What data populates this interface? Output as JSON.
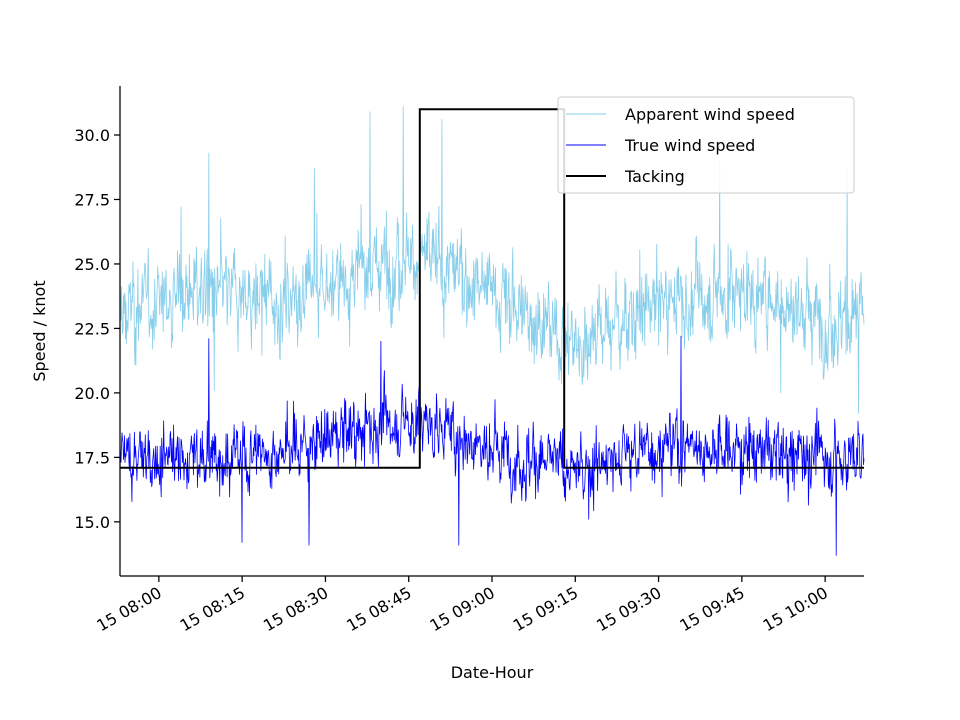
{
  "chart_data": {
    "type": "line",
    "xlabel": "Date-Hour",
    "ylabel": "Speed / knot",
    "x_range": [
      "2000-01-15T07:53",
      "2000-01-15T10:07"
    ],
    "x_ticks": [
      {
        "time": "2000-01-15T08:00",
        "label": "15 08:00"
      },
      {
        "time": "2000-01-15T08:15",
        "label": "15 08:15"
      },
      {
        "time": "2000-01-15T08:30",
        "label": "15 08:30"
      },
      {
        "time": "2000-01-15T08:45",
        "label": "15 08:45"
      },
      {
        "time": "2000-01-15T09:00",
        "label": "15 09:00"
      },
      {
        "time": "2000-01-15T09:15",
        "label": "15 09:15"
      },
      {
        "time": "2000-01-15T09:30",
        "label": "15 09:30"
      },
      {
        "time": "2000-01-15T09:45",
        "label": "15 09:45"
      },
      {
        "time": "2000-01-15T10:00",
        "label": "15 10:00"
      }
    ],
    "ylim": [
      12.9,
      31.9
    ],
    "y_ticks": [
      {
        "value": 15.0,
        "label": "15.0"
      },
      {
        "value": 17.5,
        "label": "17.5"
      },
      {
        "value": 20.0,
        "label": "20.0"
      },
      {
        "value": 22.5,
        "label": "22.5"
      },
      {
        "value": 25.0,
        "label": "25.0"
      },
      {
        "value": 27.5,
        "label": "27.5"
      },
      {
        "value": 30.0,
        "label": "30.0"
      }
    ],
    "legend_position": "top-right",
    "grid": false,
    "series": [
      {
        "name": "Apparent wind speed",
        "color": "#87ceeb",
        "style": "noisy",
        "time_start": "2000-01-15T07:53",
        "time_end": "2000-01-15T10:07",
        "approx_mean": 23.5,
        "approx_range": [
          19.0,
          31.0
        ],
        "anchors": [
          {
            "time": "2000-01-15T07:53",
            "value": 23.0
          },
          {
            "time": "2000-01-15T08:05",
            "value": 24.0
          },
          {
            "time": "2000-01-15T08:20",
            "value": 23.5
          },
          {
            "time": "2000-01-15T08:35",
            "value": 24.5
          },
          {
            "time": "2000-01-15T08:45",
            "value": 25.5
          },
          {
            "time": "2000-01-15T08:50",
            "value": 25.0
          },
          {
            "time": "2000-01-15T09:00",
            "value": 24.0
          },
          {
            "time": "2000-01-15T09:10",
            "value": 22.5
          },
          {
            "time": "2000-01-15T09:15",
            "value": 22.0
          },
          {
            "time": "2000-01-15T09:30",
            "value": 23.5
          },
          {
            "time": "2000-01-15T09:45",
            "value": 24.0
          },
          {
            "time": "2000-01-15T10:00",
            "value": 23.0
          },
          {
            "time": "2000-01-15T10:07",
            "value": 23.0
          }
        ],
        "peaks": [
          {
            "time": "2000-01-15T08:04",
            "value": 27.2
          },
          {
            "time": "2000-01-15T08:09",
            "value": 29.3
          },
          {
            "time": "2000-01-15T08:28",
            "value": 28.7
          },
          {
            "time": "2000-01-15T08:38",
            "value": 30.9
          },
          {
            "time": "2000-01-15T08:44",
            "value": 31.1
          },
          {
            "time": "2000-01-15T08:51",
            "value": 30.6
          },
          {
            "time": "2000-01-15T09:41",
            "value": 29.0
          },
          {
            "time": "2000-01-15T10:04",
            "value": 28.6
          }
        ],
        "troughs": [
          {
            "time": "2000-01-15T08:10",
            "value": 20.1
          },
          {
            "time": "2000-01-15T09:13",
            "value": 19.8
          },
          {
            "time": "2000-01-15T09:52",
            "value": 20.0
          },
          {
            "time": "2000-01-15T10:06",
            "value": 19.2
          }
        ]
      },
      {
        "name": "True wind speed",
        "color": "#0000ff",
        "style": "noisy",
        "time_start": "2000-01-15T07:53",
        "time_end": "2000-01-15T10:07",
        "approx_mean": 17.8,
        "approx_range": [
          13.7,
          22.2
        ],
        "anchors": [
          {
            "time": "2000-01-15T07:53",
            "value": 17.5
          },
          {
            "time": "2000-01-15T08:15",
            "value": 17.5
          },
          {
            "time": "2000-01-15T08:35",
            "value": 18.5
          },
          {
            "time": "2000-01-15T08:45",
            "value": 19.0
          },
          {
            "time": "2000-01-15T08:52",
            "value": 18.5
          },
          {
            "time": "2000-01-15T09:05",
            "value": 17.5
          },
          {
            "time": "2000-01-15T09:15",
            "value": 17.0
          },
          {
            "time": "2000-01-15T09:30",
            "value": 18.0
          },
          {
            "time": "2000-01-15T09:45",
            "value": 17.8
          },
          {
            "time": "2000-01-15T10:07",
            "value": 17.5
          }
        ],
        "peaks": [
          {
            "time": "2000-01-15T08:09",
            "value": 22.1
          },
          {
            "time": "2000-01-15T08:40",
            "value": 22.0
          },
          {
            "time": "2000-01-15T09:34",
            "value": 22.2
          }
        ],
        "troughs": [
          {
            "time": "2000-01-15T08:15",
            "value": 14.2
          },
          {
            "time": "2000-01-15T08:27",
            "value": 14.1
          },
          {
            "time": "2000-01-15T08:54",
            "value": 14.1
          },
          {
            "time": "2000-01-15T10:02",
            "value": 13.7
          }
        ]
      },
      {
        "name": "Tacking",
        "color": "#000000",
        "style": "step",
        "points": [
          {
            "time": "2000-01-15T07:53",
            "value": 17.1
          },
          {
            "time": "2000-01-15T08:47",
            "value": 17.1
          },
          {
            "time": "2000-01-15T08:47",
            "value": 31.0
          },
          {
            "time": "2000-01-15T09:13",
            "value": 31.0
          },
          {
            "time": "2000-01-15T09:13",
            "value": 17.1
          },
          {
            "time": "2000-01-15T10:07",
            "value": 17.1
          }
        ]
      }
    ]
  }
}
